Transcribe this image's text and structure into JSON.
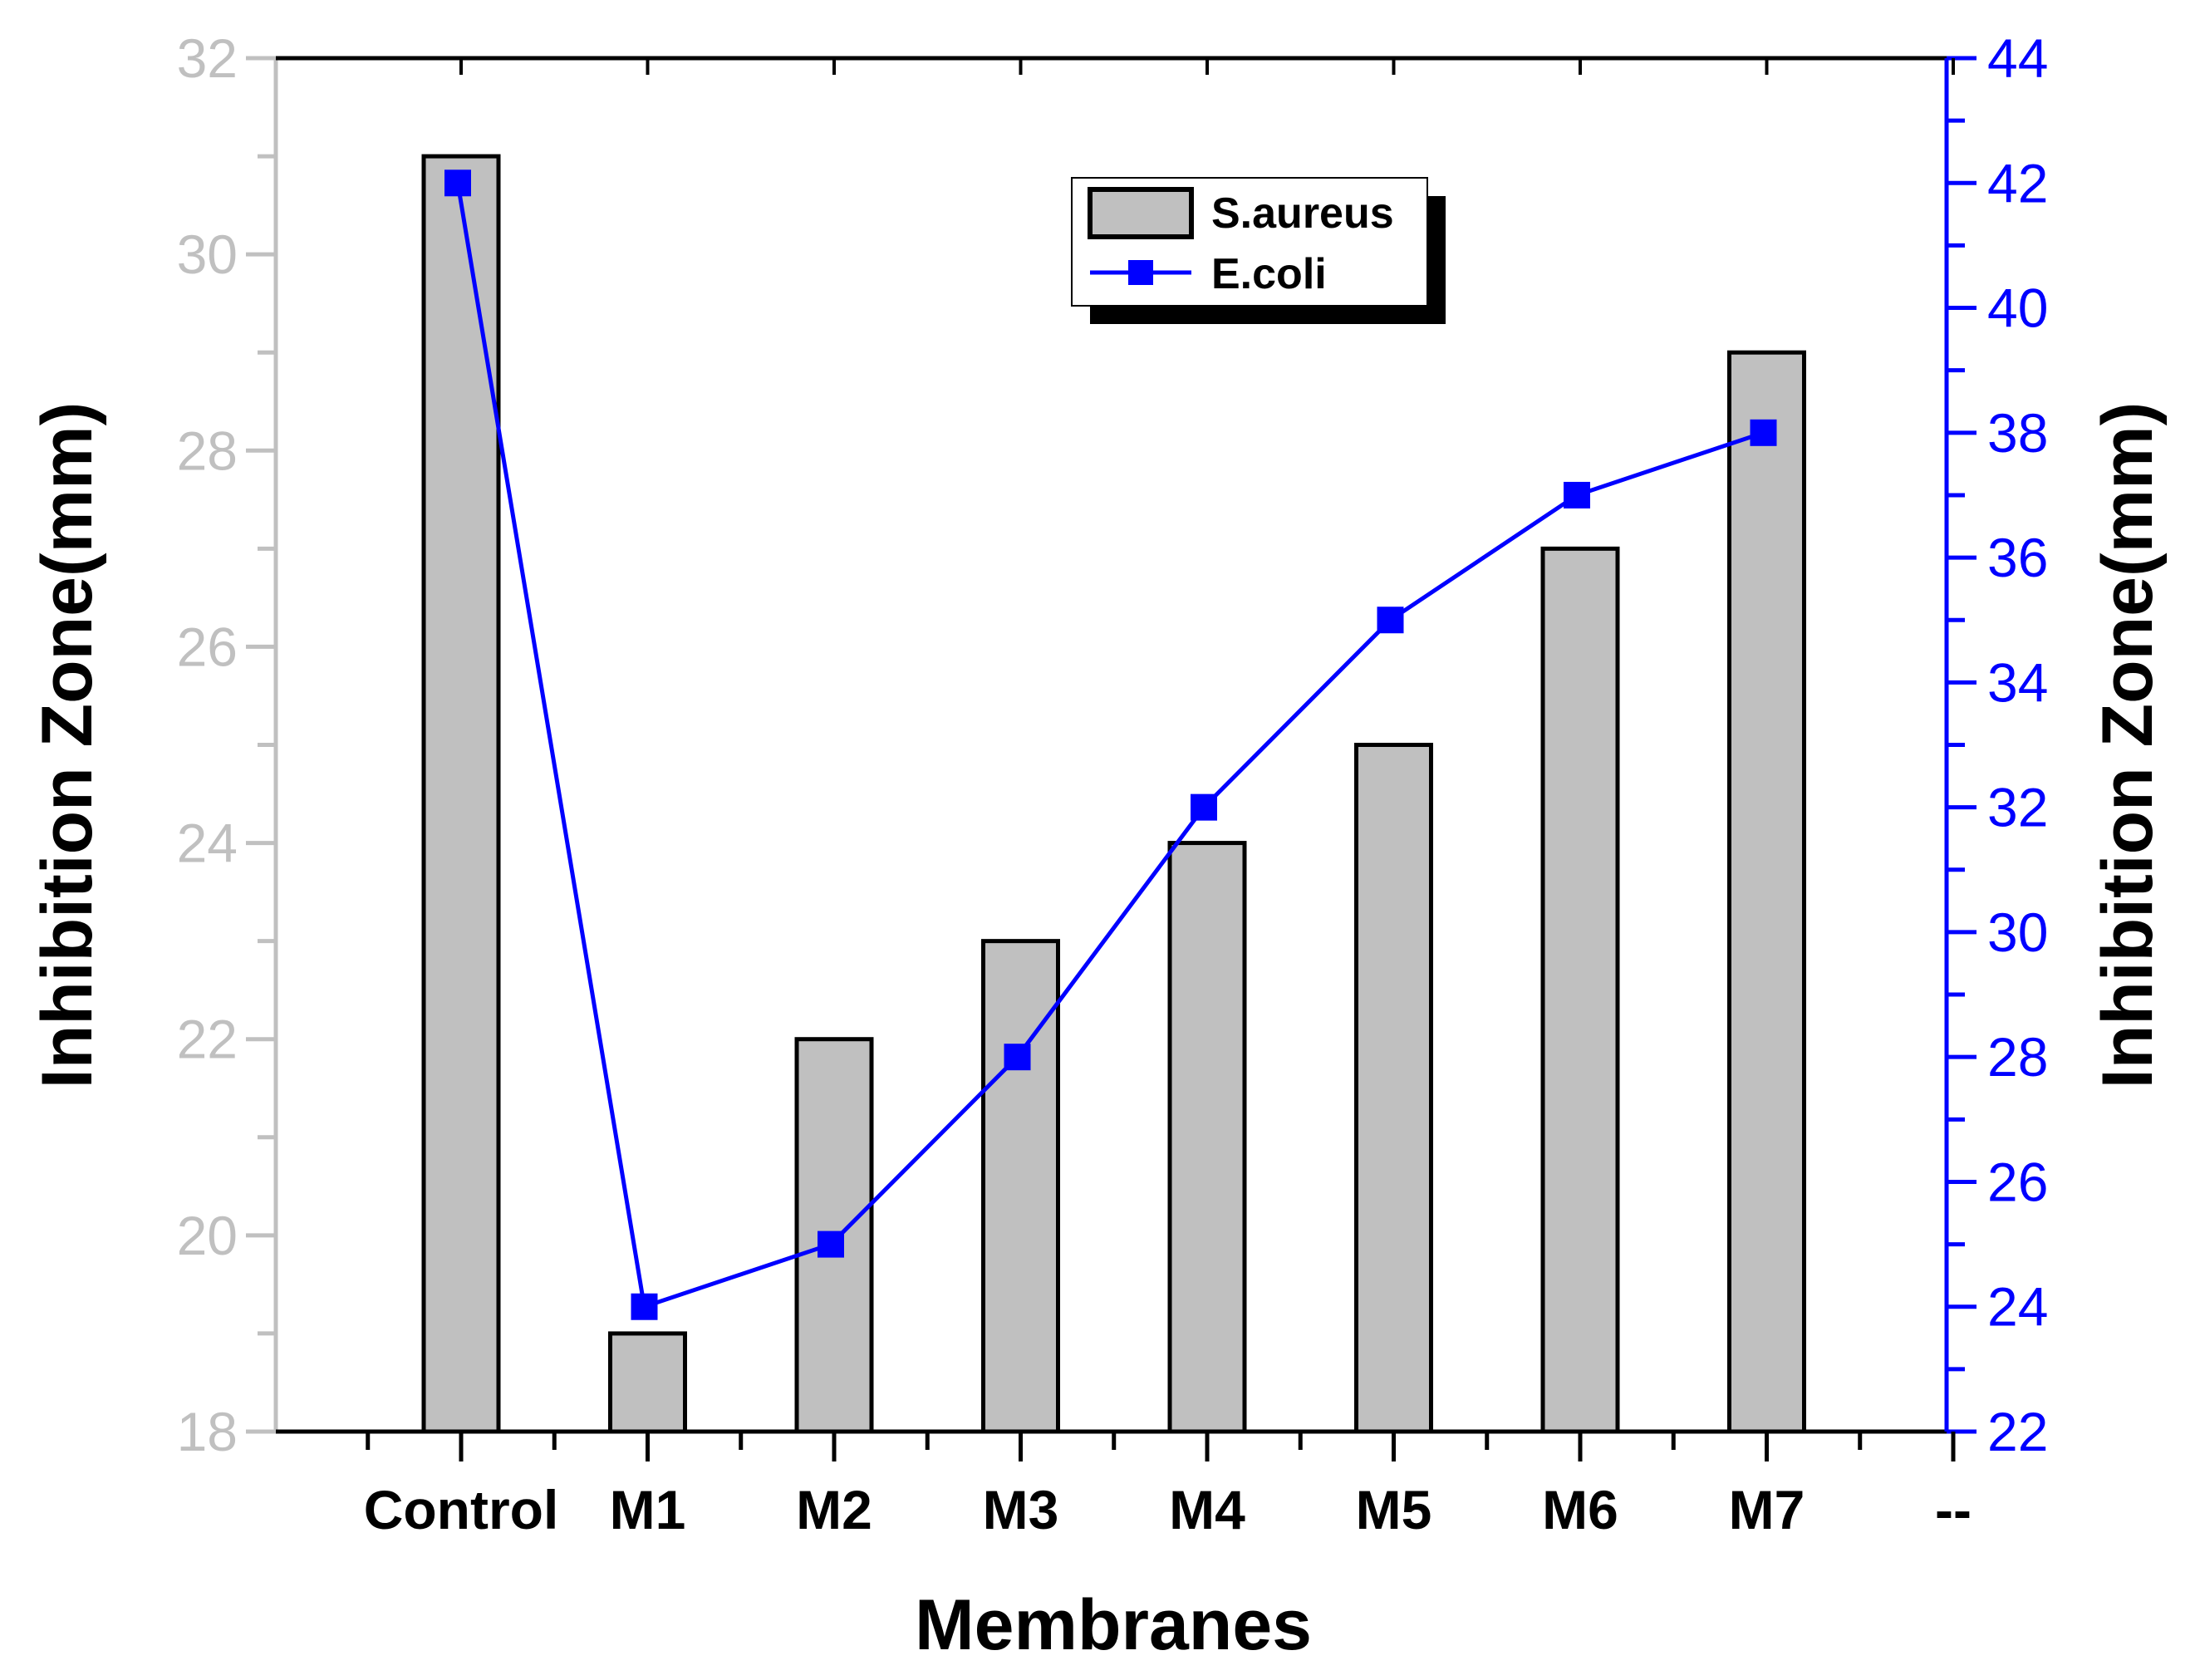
{
  "chart_data": {
    "type": "bar+line",
    "categories": [
      "Control",
      "M1",
      "M2",
      "M3",
      "M4",
      "M5",
      "M6",
      "M7",
      "--"
    ],
    "series": [
      {
        "name": "S.aureus",
        "type": "bar",
        "axis": "left",
        "values": [
          31,
          19,
          22,
          23,
          24,
          25,
          27,
          29,
          null
        ],
        "color": "#c0c0c0",
        "edge_color": "#000000"
      },
      {
        "name": "E.coli",
        "type": "line",
        "axis": "right",
        "marker": "square",
        "values": [
          42,
          24,
          25,
          28,
          32,
          35,
          37,
          38,
          null
        ],
        "color": "#0000ff"
      }
    ],
    "xlabel": "Membranes",
    "ylabel_left": "Inhibition Zone(mm)",
    "ylabel_right": "Inhibition Zone(mm)",
    "ylim_left": [
      18,
      32
    ],
    "ylim_right": [
      22,
      44
    ],
    "yticks_left": [
      "18",
      "20",
      "22",
      "24",
      "26",
      "28",
      "30",
      "32"
    ],
    "yticks_right": [
      "22",
      "24",
      "26",
      "28",
      "30",
      "32",
      "34",
      "36",
      "38",
      "40",
      "42",
      "44"
    ],
    "left_axis_color": "#c0c0c0",
    "right_axis_color": "#0000ff",
    "legend_position": "top-center",
    "grid": false
  }
}
